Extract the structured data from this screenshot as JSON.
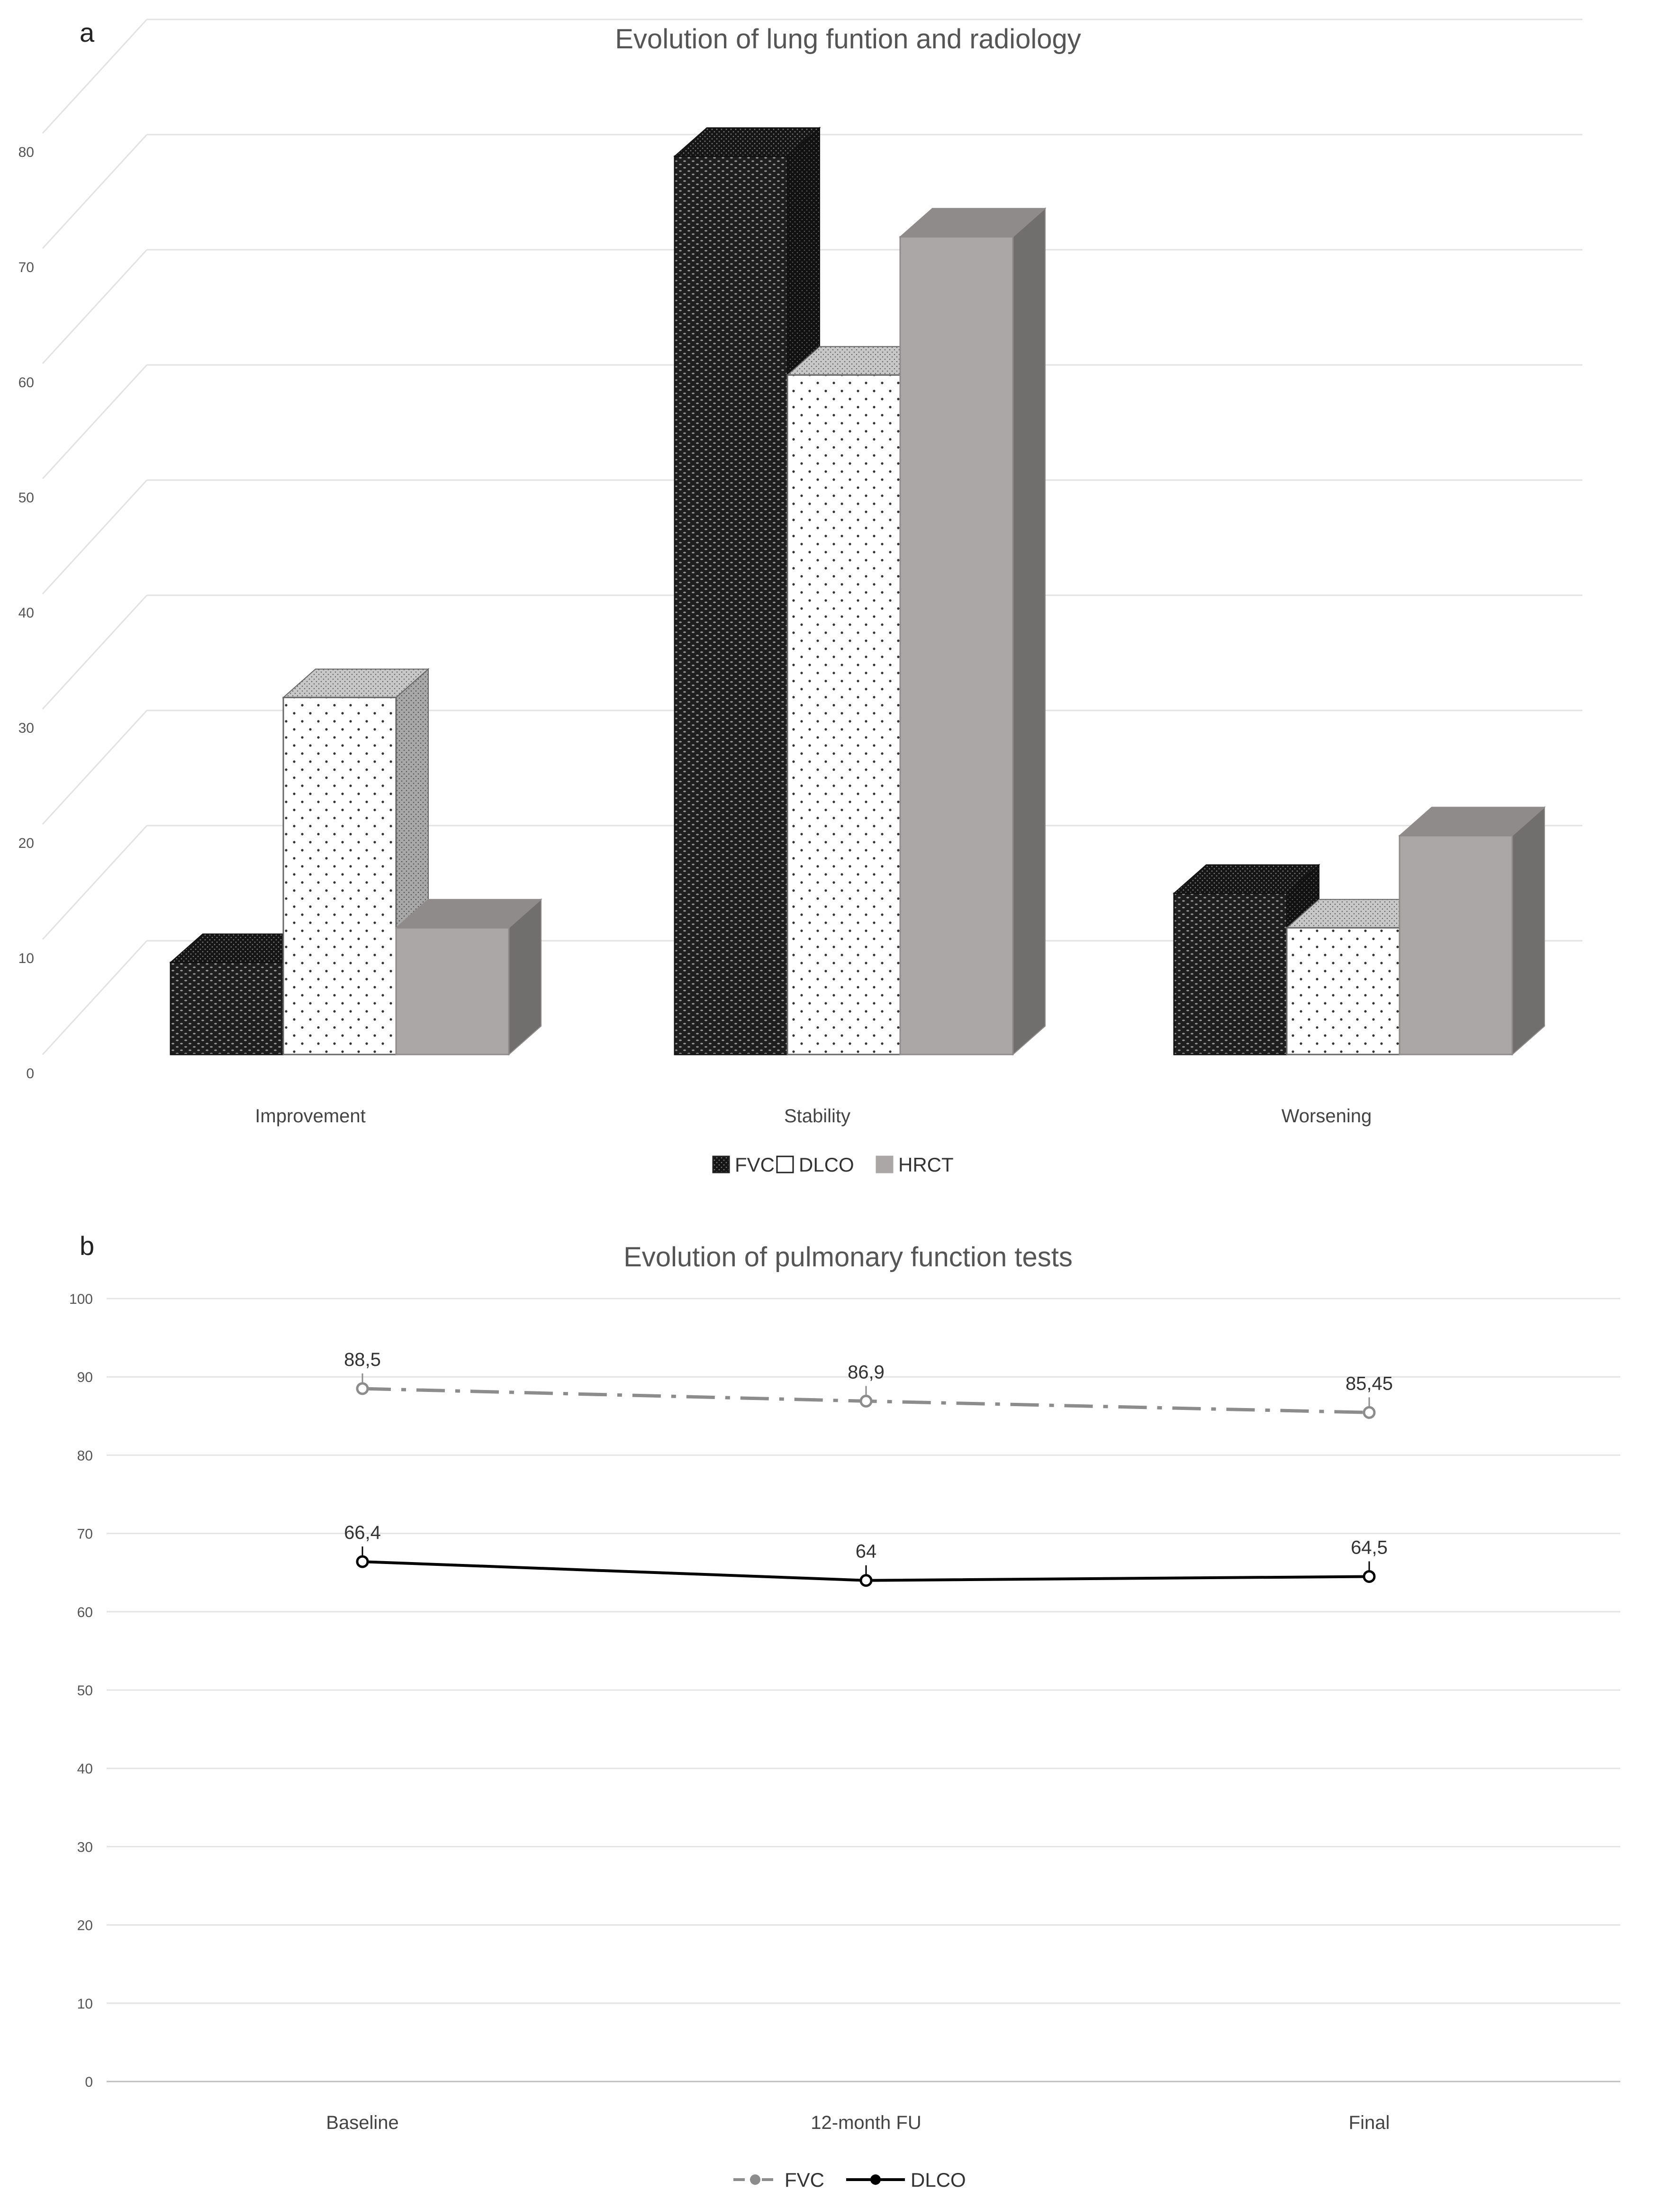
{
  "panel_a": {
    "letter": "a",
    "chart_data": {
      "type": "bar",
      "title": "Evolution of lung funtion and radiology",
      "categories": [
        "Improvement",
        "Stability",
        "Worsening"
      ],
      "series": [
        {
          "name": "FVC",
          "values": [
            8,
            78,
            14
          ]
        },
        {
          "name": "DLCO",
          "values": [
            31,
            59,
            11
          ]
        },
        {
          "name": "HRCT",
          "values": [
            11,
            71,
            19
          ]
        }
      ],
      "ylim": [
        0,
        80
      ],
      "yticks": [
        "0",
        "10",
        "20",
        "30",
        "40",
        "50",
        "60",
        "70",
        "80"
      ],
      "grid": true,
      "legend_position": "bottom",
      "three_d": true
    }
  },
  "panel_b": {
    "letter": "b",
    "chart_data": {
      "type": "line",
      "title": "Evolution of pulmonary function tests",
      "categories": [
        "Baseline",
        "12-month FU",
        "Final"
      ],
      "series": [
        {
          "name": "FVC",
          "values": [
            88.5,
            86.9,
            85.45
          ],
          "labels": [
            "88,5",
            "86,9",
            "85,45"
          ],
          "style": "dash-dot",
          "color": "#8c8c8c"
        },
        {
          "name": "DLCO",
          "values": [
            66.4,
            64,
            64.5
          ],
          "labels": [
            "66,4",
            "64",
            "64,5"
          ],
          "style": "solid",
          "color": "#000000"
        }
      ],
      "ylim": [
        0,
        100
      ],
      "yticks": [
        "0",
        "10",
        "20",
        "30",
        "40",
        "50",
        "60",
        "70",
        "80",
        "90",
        "100"
      ],
      "grid": true,
      "legend_position": "bottom"
    }
  }
}
